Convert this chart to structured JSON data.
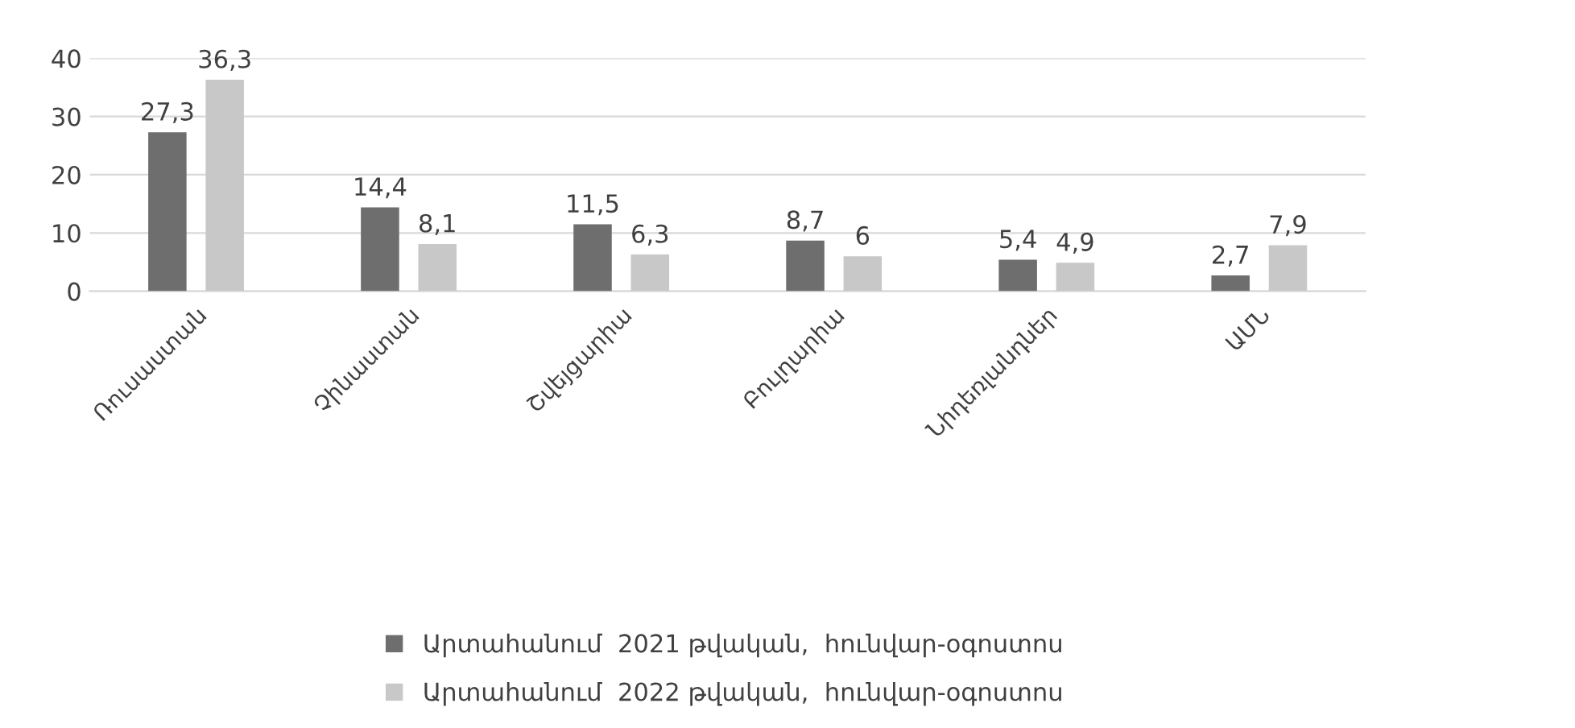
{
  "chart_data": {
    "type": "bar",
    "categories": [
      "Ռուսաստան",
      "Չինաստան",
      "Շվեյցարիա",
      "Բուլղարիա",
      "Նիդեռլանդներ",
      "ԱՄՆ"
    ],
    "series": [
      {
        "name": "Արտահանում  2021 թվական,  հունվար-օգոստոս",
        "color": "#6e6e6e",
        "values": [
          27.3,
          14.4,
          11.5,
          8.7,
          5.4,
          2.7
        ],
        "value_labels": [
          "27,3",
          "14,4",
          "11,5",
          "8,7",
          "5,4",
          "2,7"
        ]
      },
      {
        "name": "Արտահանում  2022 թվական,  հունվար-օգոստոս",
        "color": "#c8c8c8",
        "values": [
          36.3,
          8.1,
          6.3,
          6,
          4.9,
          7.9
        ],
        "value_labels": [
          "36,3",
          "8,1",
          "6,3",
          "6",
          "4,9",
          "7,9"
        ]
      }
    ],
    "ylim": [
      0,
      40
    ],
    "yticks": [
      0,
      10,
      20,
      30,
      40
    ],
    "grid": "y",
    "legend": "bottom"
  }
}
